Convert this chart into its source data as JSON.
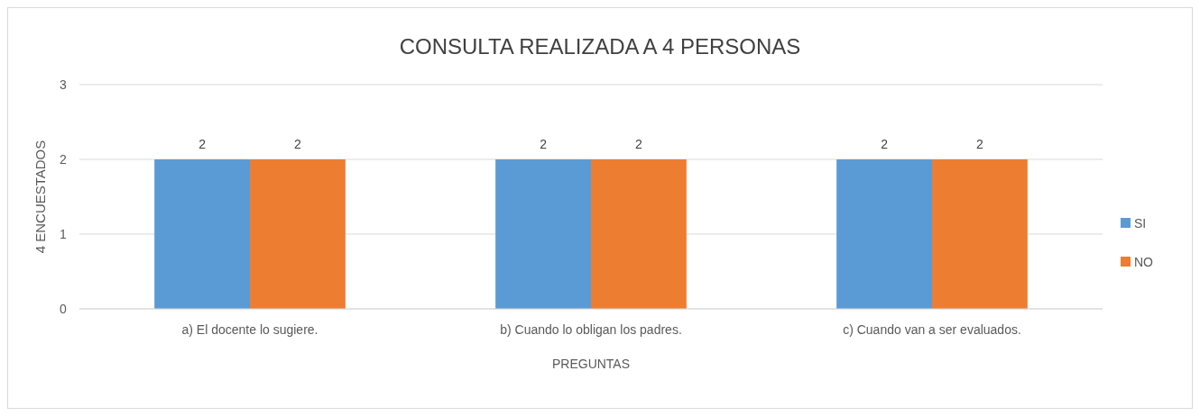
{
  "chart_data": {
    "type": "bar",
    "title": "CONSULTA REALIZADA A 4 PERSONAS",
    "xlabel": "PREGUNTAS",
    "ylabel": "4 ENCUESTADOS",
    "categories": [
      "a) El docente lo sugiere.",
      "b) Cuando lo obligan los padres.",
      "c) Cuando van a ser evaluados."
    ],
    "series": [
      {
        "name": "SI",
        "color": "#5b9bd5",
        "values": [
          2,
          2,
          2
        ]
      },
      {
        "name": "NO",
        "color": "#ed7d31",
        "values": [
          2,
          2,
          2
        ]
      }
    ],
    "ylim": [
      0,
      3
    ],
    "yticks": [
      0,
      1,
      2,
      3
    ],
    "grid": "y",
    "legend": "right",
    "data_labels": true
  }
}
